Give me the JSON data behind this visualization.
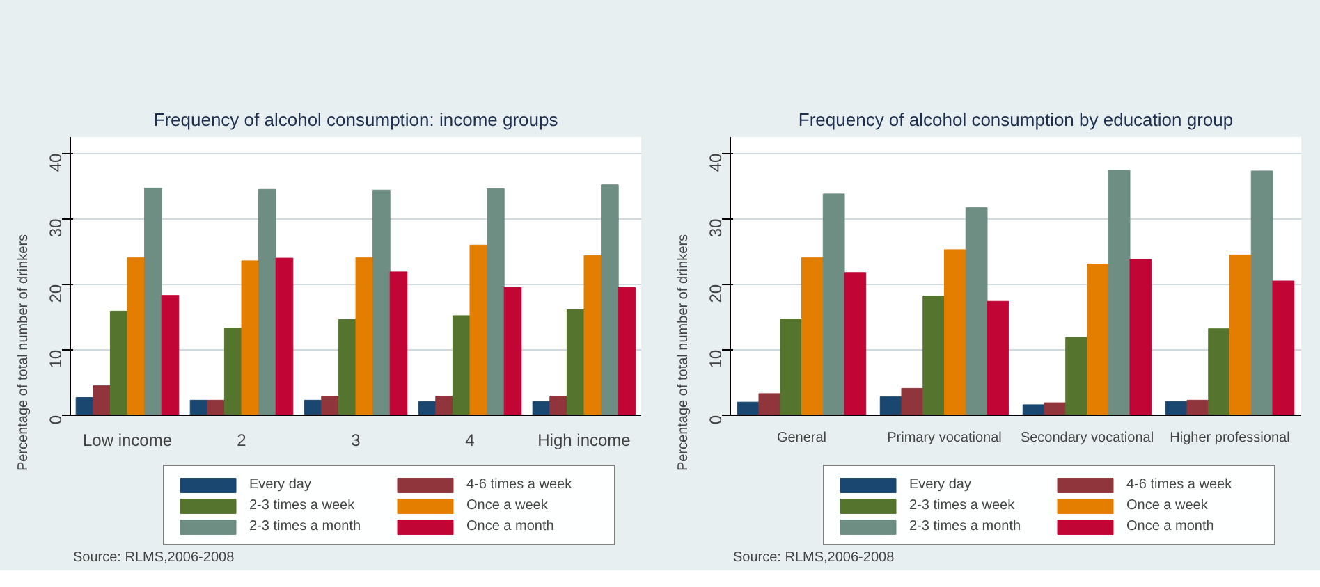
{
  "chart_data": [
    {
      "type": "bar",
      "title": "Frequency of alcohol consumption: income groups",
      "ylabel": "Percentage of total number of drinkers",
      "categories": [
        "Low income",
        "2",
        "3",
        "4",
        "High income"
      ],
      "series": [
        {
          "name": "Every day",
          "color": "#1a476f",
          "values": [
            2.7,
            2.3,
            2.3,
            2.1,
            2.1
          ]
        },
        {
          "name": "4-6 times a week",
          "color": "#90353b",
          "values": [
            4.5,
            2.3,
            2.9,
            2.9,
            2.9
          ]
        },
        {
          "name": "2-3 times a week",
          "color": "#55752f",
          "values": [
            15.9,
            13.3,
            14.6,
            15.2,
            16.1
          ]
        },
        {
          "name": "Once a week",
          "color": "#e37e00",
          "values": [
            24.1,
            23.6,
            24.1,
            26.0,
            24.4
          ]
        },
        {
          "name": "2-3 times a month",
          "color": "#6e8e84",
          "values": [
            34.7,
            34.5,
            34.4,
            34.6,
            35.2
          ]
        },
        {
          "name": "Once a month",
          "color": "#c10534",
          "values": [
            18.3,
            24.0,
            21.9,
            19.5,
            19.5
          ]
        }
      ],
      "ylim": [
        0,
        42.5
      ],
      "yticks": [
        0,
        10,
        20,
        30,
        40
      ],
      "grid": "y",
      "legend": "bottom",
      "annotations": [
        "Source: RLMS,2006-2008"
      ]
    },
    {
      "type": "bar",
      "title": "Frequency of alcohol consumption by education group",
      "ylabel": "Percentage of total number of drinkers",
      "categories": [
        "General",
        "Primary vocational",
        "Secondary vocational",
        "Higher professional"
      ],
      "series": [
        {
          "name": "Every day",
          "color": "#1a476f",
          "values": [
            2.0,
            2.8,
            1.6,
            2.1
          ]
        },
        {
          "name": "4-6 times a week",
          "color": "#90353b",
          "values": [
            3.3,
            4.1,
            1.9,
            2.3
          ]
        },
        {
          "name": "2-3 times a week",
          "color": "#55752f",
          "values": [
            14.7,
            18.2,
            11.9,
            13.2
          ]
        },
        {
          "name": "Once a week",
          "color": "#e37e00",
          "values": [
            24.1,
            25.3,
            23.1,
            24.5
          ]
        },
        {
          "name": "2-3 times a month",
          "color": "#6e8e84",
          "values": [
            33.8,
            31.7,
            37.4,
            37.3
          ]
        },
        {
          "name": "Once a month",
          "color": "#c10534",
          "values": [
            21.8,
            17.4,
            23.8,
            20.5
          ]
        }
      ],
      "ylim": [
        0,
        42.5
      ],
      "yticks": [
        0,
        10,
        20,
        30,
        40
      ],
      "grid": "y",
      "legend": "bottom",
      "annotations": [
        "Source: RLMS,2006-2008"
      ]
    }
  ]
}
